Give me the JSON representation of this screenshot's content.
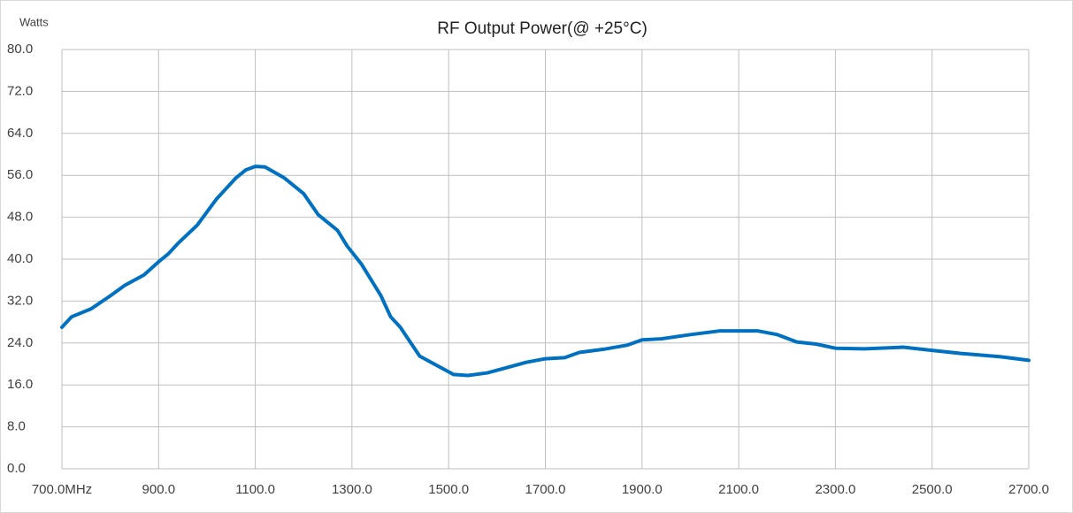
{
  "chart_data": {
    "type": "line",
    "title": "RF Output Power(@ +25°C)",
    "ylabel": "Watts",
    "x": [
      700,
      720,
      760,
      800,
      830,
      870,
      900,
      920,
      940,
      980,
      1020,
      1060,
      1080,
      1100,
      1120,
      1160,
      1200,
      1230,
      1270,
      1290,
      1320,
      1360,
      1380,
      1400,
      1440,
      1480,
      1510,
      1540,
      1580,
      1620,
      1660,
      1700,
      1740,
      1770,
      1820,
      1870,
      1900,
      1940,
      2000,
      2060,
      2100,
      2140,
      2180,
      2220,
      2260,
      2300,
      2360,
      2440,
      2500,
      2560,
      2640,
      2700
    ],
    "series": [
      {
        "name": "RF Output Power",
        "color": "#0070c0",
        "values": [
          27,
          29,
          30.5,
          33,
          35,
          37,
          39.5,
          41,
          43,
          46.5,
          51.5,
          55.5,
          57,
          57.7,
          57.6,
          55.5,
          52.5,
          48.5,
          45.5,
          42.5,
          39,
          33,
          29,
          27,
          21.5,
          19.5,
          18,
          17.8,
          18.3,
          19.3,
          20.3,
          21,
          21.2,
          22.2,
          22.8,
          23.6,
          24.6,
          24.8,
          25.6,
          26.3,
          26.3,
          26.3,
          25.6,
          24.2,
          23.8,
          23,
          22.9,
          23.2,
          22.6,
          22,
          21.4,
          20.7
        ]
      }
    ],
    "xlim": [
      700,
      2700
    ],
    "xticks": [
      {
        "value": 700,
        "label": "700.0MHz"
      },
      {
        "value": 900,
        "label": "900.0"
      },
      {
        "value": 1100,
        "label": "1100.0"
      },
      {
        "value": 1300,
        "label": "1300.0"
      },
      {
        "value": 1500,
        "label": "1500.0"
      },
      {
        "value": 1700,
        "label": "1700.0"
      },
      {
        "value": 1900,
        "label": "1900.0"
      },
      {
        "value": 2100,
        "label": "2100.0"
      },
      {
        "value": 2300,
        "label": "2300.0"
      },
      {
        "value": 2500,
        "label": "2500.0"
      },
      {
        "value": 2700,
        "label": "2700.0"
      }
    ],
    "ylim": [
      0,
      80
    ],
    "yticks": [
      {
        "value": 0,
        "label": "0.0"
      },
      {
        "value": 8,
        "label": "8.0"
      },
      {
        "value": 16,
        "label": "16.0"
      },
      {
        "value": 24,
        "label": "24.0"
      },
      {
        "value": 32,
        "label": "32.0"
      },
      {
        "value": 40,
        "label": "40.0"
      },
      {
        "value": 48,
        "label": "48.0"
      },
      {
        "value": 56,
        "label": "56.0"
      },
      {
        "value": 64,
        "label": "64.0"
      },
      {
        "value": 72,
        "label": "72.0"
      },
      {
        "value": 80,
        "label": "80.0"
      }
    ],
    "grid": true
  }
}
